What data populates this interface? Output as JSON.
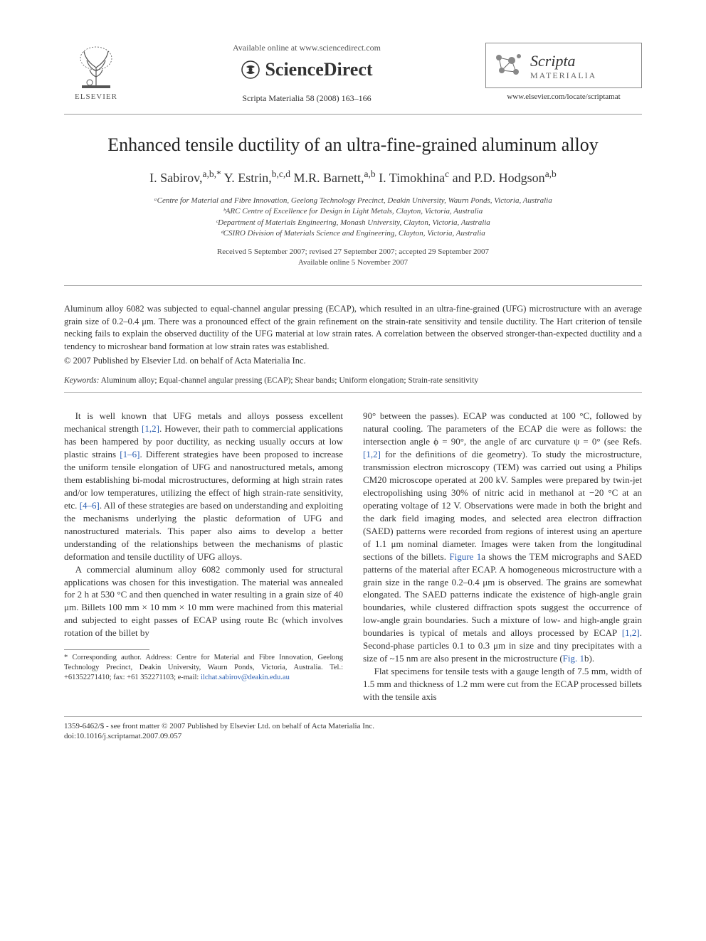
{
  "header": {
    "available_online": "Available online at www.sciencedirect.com",
    "sciencedirect": "ScienceDirect",
    "citation": "Scripta Materialia 58 (2008) 163–166",
    "elsevier": "ELSEVIER",
    "journal_scripta": "Scripta",
    "journal_materialia": "MATERIALIA",
    "journal_url": "www.elsevier.com/locate/scriptamat"
  },
  "title": "Enhanced tensile ductility of an ultra-fine-grained aluminum alloy",
  "authors_html": "I. Sabirov,<sup>a,b,*</sup> Y. Estrin,<sup>b,c,d</sup> M.R. Barnett,<sup>a,b</sup> I. Timokhina<sup>c</sup> and P.D. Hodgson<sup>a,b</sup>",
  "affiliations": [
    "ᵃCentre for Material and Fibre Innovation, Geelong Technology Precinct, Deakin University, Waurn Ponds, Victoria, Australia",
    "ᵇARC Centre of Excellence for Design in Light Metals, Clayton, Victoria, Australia",
    "ᶜDepartment of Materials Engineering, Monash University, Clayton, Victoria, Australia",
    "ᵈCSIRO Division of Materials Science and Engineering, Clayton, Victoria, Australia"
  ],
  "dates": {
    "received": "Received 5 September 2007; revised 27 September 2007; accepted 29 September 2007",
    "available": "Available online 5 November 2007"
  },
  "abstract": "Aluminum alloy 6082 was subjected to equal-channel angular pressing (ECAP), which resulted in an ultra-fine-grained (UFG) microstructure with an average grain size of 0.2–0.4 μm. There was a pronounced effect of the grain refinement on the strain-rate sensitivity and tensile ductility. The Hart criterion of tensile necking fails to explain the observed ductility of the UFG material at low strain rates. A correlation between the observed stronger-than-expected ductility and a tendency to microshear band formation at low strain rates was established.",
  "copyright": "© 2007 Published by Elsevier Ltd. on behalf of Acta Materialia Inc.",
  "keywords_label": "Keywords:",
  "keywords_text": " Aluminum alloy; Equal-channel angular pressing (ECAP); Shear bands; Uniform elongation; Strain-rate sensitivity",
  "body": {
    "left": {
      "p1_a": "It is well known that UFG metals and alloys possess excellent mechanical strength ",
      "p1_ref1": "[1,2]",
      "p1_b": ". However, their path to commercial applications has been hampered by poor ductility, as necking usually occurs at low plastic strains ",
      "p1_ref2": "[1–6]",
      "p1_c": ". Different strategies have been proposed to increase the uniform tensile elongation of UFG and nanostructured metals, among them establishing bi-modal microstructures, deforming at high strain rates and/or low temperatures, utilizing the effect of high strain-rate sensitivity, etc. ",
      "p1_ref3": "[4–6]",
      "p1_d": ". All of these strategies are based on understanding and exploiting the mechanisms underlying the plastic deformation of UFG and nanostructured materials. This paper also aims to develop a better understanding of the relationships between the mechanisms of plastic deformation and tensile ductility of UFG alloys.",
      "p2": "A commercial aluminum alloy 6082 commonly used for structural applications was chosen for this investigation. The material was annealed for 2 h at 530 °C and then quenched in water resulting in a grain size of 40 μm. Billets 100 mm × 10 mm × 10 mm were machined from this material and subjected to eight passes of ECAP using route Bc (which involves rotation of the billet by"
    },
    "right": {
      "p1_a": "90° between the passes). ECAP was conducted at 100 °C, followed by natural cooling. The parameters of the ECAP die were as follows: the intersection angle ϕ = 90°, the angle of arc curvature ψ = 0° (see Refs. ",
      "p1_ref1": "[1,2]",
      "p1_b": " for the definitions of die geometry). To study the microstructure, transmission electron microscopy (TEM) was carried out using a Philips CM20 microscope operated at 200 kV. Samples were prepared by twin-jet electropolishing using 30% of nitric acid in methanol at −20 °C at an operating voltage of 12 V. Observations were made in both the bright and the dark field imaging modes, and selected area electron diffraction (SAED) patterns were recorded from regions of interest using an aperture of 1.1 μm nominal diameter. Images were taken from the longitudinal sections of the billets. ",
      "p1_fig1a": "Figure 1",
      "p1_c": "a shows the TEM micrographs and SAED patterns of the material after ECAP. A homogeneous microstructure with a grain size in the range 0.2–0.4 μm is observed. The grains are somewhat elongated. The SAED patterns indicate the existence of high-angle grain boundaries, while clustered diffraction spots suggest the occurrence of low-angle grain boundaries. Such a mixture of low- and high-angle grain boundaries is typical of metals and alloys processed by ECAP ",
      "p1_ref2": "[1,2]",
      "p1_d": ". Second-phase particles 0.1 to 0.3 μm in size and tiny precipitates with a size of ~15 nm are also present in the microstructure (",
      "p1_fig1b": "Fig. 1",
      "p1_e": "b).",
      "p2": "Flat specimens for tensile tests with a gauge length of 7.5 mm, width of 1.5 mm and thickness of 1.2 mm were cut from the ECAP processed billets with the tensile axis"
    }
  },
  "footnote": {
    "text_a": "* Corresponding author. Address: Centre for Material and Fibre Innovation, Geelong Technology Precinct, Deakin University, Waurn Ponds, Victoria, Australia. Tel.: +61352271410; fax: +61 352271103; e-mail: ",
    "email": "ilchat.sabirov@deakin.edu.au"
  },
  "footer": {
    "line1": "1359-6462/$ - see front matter © 2007 Published by Elsevier Ltd. on behalf of Acta Materialia Inc.",
    "line2": "doi:10.1016/j.scriptamat.2007.09.057"
  },
  "colors": {
    "link": "#2a5db0",
    "text": "#333333",
    "subtext": "#555555"
  }
}
